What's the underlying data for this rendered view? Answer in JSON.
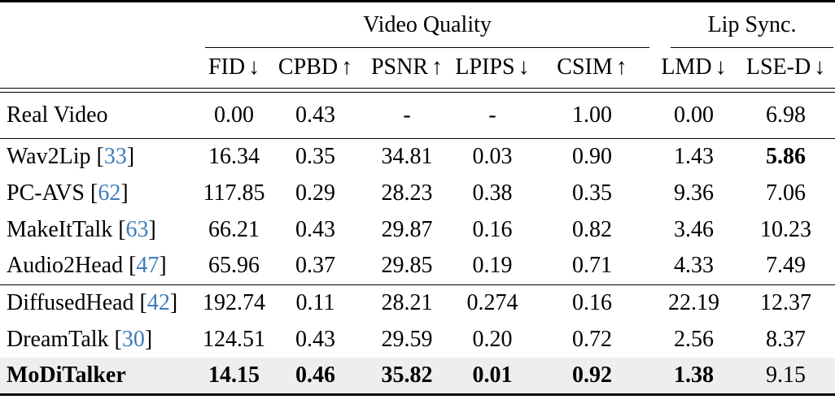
{
  "table": {
    "colors": {
      "reference_blue": "#3d7dbf",
      "highlight_bg": "#eeeeee",
      "ink": "#000000",
      "page_background": "#ffffff"
    },
    "group_headers": [
      {
        "label": "Video Quality",
        "span": 5
      },
      {
        "label": "Lip Sync.",
        "span": 2
      }
    ],
    "columns": [
      {
        "label": "FID",
        "arrow": "↓"
      },
      {
        "label": "CPBD",
        "arrow": "↑"
      },
      {
        "label": "PSNR",
        "arrow": "↑"
      },
      {
        "label": "LPIPS",
        "arrow": "↓"
      },
      {
        "label": "CSIM",
        "arrow": "↑"
      },
      {
        "label": "LMD",
        "arrow": "↓"
      },
      {
        "label": "LSE-D",
        "arrow": "↓"
      }
    ],
    "sections": [
      {
        "rows": [
          {
            "method": "Real Video",
            "ref": null,
            "bold_method": false,
            "highlight": false,
            "values": [
              "0.00",
              "0.43",
              "-",
              "-",
              "1.00",
              "0.00",
              "6.98"
            ],
            "bold_values": []
          }
        ]
      },
      {
        "rows": [
          {
            "method": "Wav2Lip",
            "ref": "33",
            "bold_method": false,
            "highlight": false,
            "values": [
              "16.34",
              "0.35",
              "34.81",
              "0.03",
              "0.90",
              "1.43",
              "5.86"
            ],
            "bold_values": [
              6
            ]
          },
          {
            "method": "PC-AVS",
            "ref": "62",
            "bold_method": false,
            "highlight": false,
            "values": [
              "117.85",
              "0.29",
              "28.23",
              "0.38",
              "0.35",
              "9.36",
              "7.06"
            ],
            "bold_values": []
          },
          {
            "method": "MakeItTalk",
            "ref": "63",
            "bold_method": false,
            "highlight": false,
            "values": [
              "66.21",
              "0.43",
              "29.87",
              "0.16",
              "0.82",
              "3.46",
              "10.23"
            ],
            "bold_values": []
          },
          {
            "method": "Audio2Head",
            "ref": "47",
            "bold_method": false,
            "highlight": false,
            "values": [
              "65.96",
              "0.37",
              "29.85",
              "0.19",
              "0.71",
              "4.33",
              "7.49"
            ],
            "bold_values": []
          }
        ]
      },
      {
        "rows": [
          {
            "method": "DiffusedHead",
            "ref": "42",
            "bold_method": false,
            "highlight": false,
            "values": [
              "192.74",
              "0.11",
              "28.21",
              "0.274",
              "0.16",
              "22.19",
              "12.37"
            ],
            "bold_values": []
          },
          {
            "method": "DreamTalk",
            "ref": "30",
            "bold_method": false,
            "highlight": false,
            "values": [
              "124.51",
              "0.43",
              "29.59",
              "0.20",
              "0.72",
              "2.56",
              "8.37"
            ],
            "bold_values": []
          },
          {
            "method": "MoDiTalker",
            "ref": null,
            "bold_method": true,
            "highlight": true,
            "values": [
              "14.15",
              "0.46",
              "35.82",
              "0.01",
              "0.92",
              "1.38",
              "9.15"
            ],
            "bold_values": [
              0,
              1,
              2,
              3,
              4,
              5
            ]
          }
        ]
      }
    ]
  }
}
